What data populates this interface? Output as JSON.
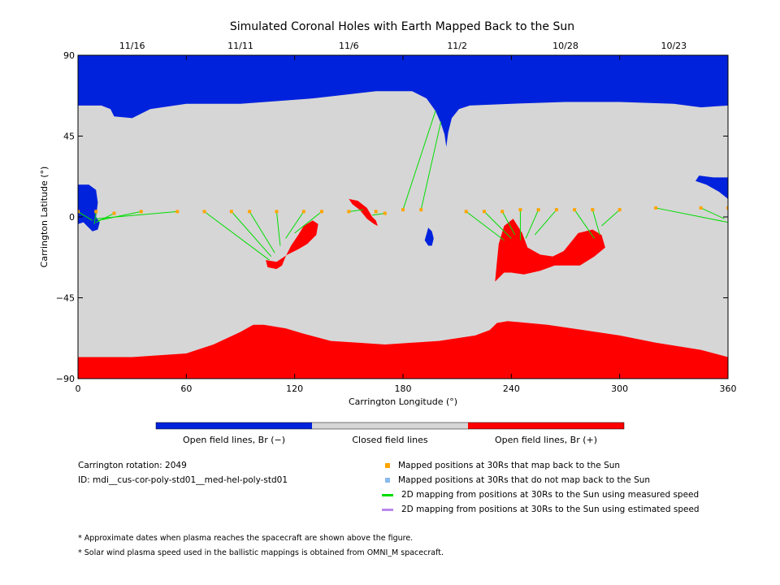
{
  "chart_data": {
    "type": "heatmap",
    "title": "Simulated Coronal Holes with Earth Mapped Back to the Sun",
    "xlabel": "Carrington Longitude (°)",
    "ylabel": "Carrington Latitude (°)",
    "xlim": [
      0,
      360
    ],
    "ylim": [
      -90,
      90
    ],
    "xticks": [
      0,
      60,
      120,
      180,
      240,
      300,
      360
    ],
    "yticks": [
      90,
      45,
      0,
      -45,
      -90
    ],
    "ytick_labels": [
      "90",
      "45",
      "0",
      "−45",
      "−90"
    ],
    "top_dates": [
      {
        "label": "11/16",
        "lon": 30
      },
      {
        "label": "11/11",
        "lon": 90
      },
      {
        "label": "11/6",
        "lon": 150
      },
      {
        "label": "11/2",
        "lon": 210
      },
      {
        "label": "10/28",
        "lon": 270
      },
      {
        "label": "10/23",
        "lon": 330
      }
    ],
    "colorbar": [
      {
        "label": "Open field lines, Br (−)",
        "color": "#0022dd"
      },
      {
        "label": "Closed field lines",
        "color": "#d6d6d6"
      },
      {
        "label": "Open field lines, Br (+)",
        "color": "#ff0000"
      }
    ],
    "regions": {
      "north_polar_negative": [
        [
          0,
          90
        ],
        [
          0,
          62
        ],
        [
          13,
          62
        ],
        [
          18,
          60
        ],
        [
          20,
          56
        ],
        [
          30,
          55
        ],
        [
          40,
          60
        ],
        [
          60,
          63
        ],
        [
          90,
          63
        ],
        [
          130,
          66
        ],
        [
          165,
          70
        ],
        [
          185,
          70
        ],
        [
          193,
          66
        ],
        [
          198,
          59
        ],
        [
          201,
          52
        ],
        [
          203,
          46
        ],
        [
          204,
          39
        ],
        [
          205,
          47
        ],
        [
          207,
          55
        ],
        [
          211,
          60
        ],
        [
          217,
          62
        ],
        [
          240,
          63
        ],
        [
          270,
          64
        ],
        [
          300,
          64
        ],
        [
          330,
          63
        ],
        [
          345,
          61
        ],
        [
          360,
          62
        ],
        [
          360,
          90
        ]
      ],
      "south_polar_positive": [
        [
          0,
          -90
        ],
        [
          0,
          -78
        ],
        [
          30,
          -78
        ],
        [
          60,
          -76
        ],
        [
          75,
          -71
        ],
        [
          90,
          -64
        ],
        [
          97,
          -60
        ],
        [
          103,
          -60
        ],
        [
          115,
          -62
        ],
        [
          125,
          -65
        ],
        [
          140,
          -69
        ],
        [
          155,
          -70
        ],
        [
          170,
          -71
        ],
        [
          185,
          -70
        ],
        [
          200,
          -69
        ],
        [
          220,
          -66
        ],
        [
          228,
          -63
        ],
        [
          232,
          -59
        ],
        [
          238,
          -58
        ],
        [
          260,
          -60
        ],
        [
          280,
          -63
        ],
        [
          300,
          -66
        ],
        [
          320,
          -70
        ],
        [
          345,
          -74
        ],
        [
          360,
          -78
        ],
        [
          360,
          -90
        ]
      ],
      "hole_neg_left": [
        [
          0,
          18
        ],
        [
          6,
          18
        ],
        [
          10,
          15
        ],
        [
          11,
          8
        ],
        [
          10,
          0
        ],
        [
          12,
          -3
        ],
        [
          11,
          -7
        ],
        [
          8,
          -8
        ],
        [
          5,
          -5
        ],
        [
          3,
          -3
        ],
        [
          0,
          -4
        ]
      ],
      "hole_neg_right": [
        [
          360,
          22
        ],
        [
          352,
          22
        ],
        [
          344,
          23
        ],
        [
          342,
          20
        ],
        [
          348,
          18
        ],
        [
          355,
          14
        ],
        [
          360,
          10
        ]
      ],
      "hole_neg_small": [
        [
          194,
          -6
        ],
        [
          196,
          -8
        ],
        [
          197,
          -12
        ],
        [
          196,
          -16
        ],
        [
          194,
          -16
        ],
        [
          192,
          -13
        ]
      ],
      "hole_pos_a": [
        [
          104,
          -24
        ],
        [
          105,
          -28
        ],
        [
          110,
          -29
        ],
        [
          113,
          -27
        ],
        [
          115,
          -22
        ],
        [
          118,
          -16
        ],
        [
          122,
          -10
        ],
        [
          125,
          -5
        ],
        [
          130,
          -2
        ],
        [
          133,
          -4
        ],
        [
          132,
          -10
        ],
        [
          127,
          -15
        ],
        [
          122,
          -18
        ],
        [
          116,
          -21
        ],
        [
          110,
          -25
        ]
      ],
      "hole_pos_b": [
        [
          150,
          10
        ],
        [
          155,
          9
        ],
        [
          160,
          5
        ],
        [
          163,
          0
        ],
        [
          165,
          -2
        ],
        [
          166,
          -5
        ],
        [
          164,
          -4
        ],
        [
          160,
          -1
        ],
        [
          156,
          4
        ],
        [
          152,
          7
        ]
      ],
      "hole_pos_c": [
        [
          231,
          -36
        ],
        [
          236,
          -31
        ],
        [
          240,
          -31
        ],
        [
          247,
          -32
        ],
        [
          256,
          -30
        ],
        [
          264,
          -27
        ],
        [
          273,
          -27
        ],
        [
          278,
          -27
        ],
        [
          286,
          -22
        ],
        [
          292,
          -17
        ],
        [
          290,
          -10
        ],
        [
          285,
          -7
        ],
        [
          277,
          -9
        ],
        [
          273,
          -14
        ],
        [
          269,
          -19
        ],
        [
          263,
          -22
        ],
        [
          256,
          -21
        ],
        [
          249,
          -17
        ],
        [
          246,
          -9
        ],
        [
          241,
          -1
        ],
        [
          236,
          -5
        ],
        [
          233,
          -15
        ],
        [
          232,
          -25
        ]
      ]
    },
    "series": [
      {
        "name": "Mapped positions at 30Rs that map back to the Sun",
        "color": "#ffa500",
        "marker": "square",
        "points": [
          [
            0,
            3
          ],
          [
            10,
            3
          ],
          [
            20,
            2
          ],
          [
            35,
            3
          ],
          [
            55,
            3
          ],
          [
            70,
            3
          ],
          [
            85,
            3
          ],
          [
            95,
            3
          ],
          [
            110,
            3
          ],
          [
            125,
            3
          ],
          [
            135,
            3
          ],
          [
            150,
            3
          ],
          [
            165,
            3
          ],
          [
            170,
            2
          ],
          [
            180,
            4
          ],
          [
            190,
            4
          ],
          [
            215,
            3
          ],
          [
            225,
            3
          ],
          [
            235,
            3
          ],
          [
            245,
            4
          ],
          [
            255,
            4
          ],
          [
            265,
            4
          ],
          [
            275,
            4
          ],
          [
            285,
            4
          ],
          [
            300,
            4
          ],
          [
            320,
            5
          ],
          [
            345,
            5
          ],
          [
            360,
            5
          ]
        ]
      },
      {
        "name": "Mapped positions at 30Rs that do not map back to the Sun",
        "color": "#88bbee",
        "marker": "square",
        "points": []
      },
      {
        "name": "2D mapping from positions at 30Rs to the Sun using measured speed",
        "color": "#00dd00",
        "marker": "line",
        "segments": [
          [
            [
              0,
              3
            ],
            [
              8,
              -2
            ]
          ],
          [
            [
              10,
              3
            ],
            [
              9,
              -4
            ]
          ],
          [
            [
              20,
              2
            ],
            [
              10,
              -3
            ]
          ],
          [
            [
              35,
              3
            ],
            [
              11,
              -2
            ]
          ],
          [
            [
              55,
              3
            ],
            [
              10,
              -1
            ]
          ],
          [
            [
              70,
              3
            ],
            [
              106,
              -24
            ]
          ],
          [
            [
              85,
              3
            ],
            [
              107,
              -22
            ]
          ],
          [
            [
              95,
              3
            ],
            [
              109,
              -20
            ]
          ],
          [
            [
              110,
              3
            ],
            [
              112,
              -16
            ]
          ],
          [
            [
              125,
              3
            ],
            [
              115,
              -12
            ]
          ],
          [
            [
              135,
              3
            ],
            [
              120,
              -9
            ]
          ],
          [
            [
              150,
              3
            ],
            [
              158,
              4
            ]
          ],
          [
            [
              170,
              2
            ],
            [
              163,
              1
            ]
          ],
          [
            [
              180,
              4
            ],
            [
              198,
              59
            ]
          ],
          [
            [
              190,
              4
            ],
            [
              201,
              53
            ]
          ],
          [
            [
              215,
              3
            ],
            [
              236,
              -13
            ]
          ],
          [
            [
              225,
              3
            ],
            [
              240,
              -12
            ]
          ],
          [
            [
              235,
              3
            ],
            [
              242,
              -10
            ]
          ],
          [
            [
              245,
              4
            ],
            [
              245,
              -13
            ]
          ],
          [
            [
              255,
              4
            ],
            [
              248,
              -12
            ]
          ],
          [
            [
              265,
              4
            ],
            [
              253,
              -10
            ]
          ],
          [
            [
              275,
              4
            ],
            [
              286,
              -12
            ]
          ],
          [
            [
              285,
              4
            ],
            [
              289,
              -10
            ]
          ],
          [
            [
              300,
              4
            ],
            [
              290,
              -5
            ]
          ],
          [
            [
              320,
              5
            ],
            [
              360,
              -3
            ]
          ],
          [
            [
              345,
              5
            ],
            [
              358,
              -1
            ]
          ]
        ]
      },
      {
        "name": "2D mapping from positions at 30Rs to the Sun using estimated speed",
        "color": "#bb88ee",
        "marker": "line",
        "segments": []
      }
    ]
  },
  "info": {
    "rotation": "Carrington rotation: 2049",
    "model_id": "ID: mdi__cus-cor-poly-std01__med-hel-poly-std01"
  },
  "notes": [
    "* Approximate dates when plasma reaches the spacecraft are shown above the figure.",
    "* Solar wind plasma speed used in the ballistic mappings is obtained from OMNI_M spacecraft."
  ]
}
